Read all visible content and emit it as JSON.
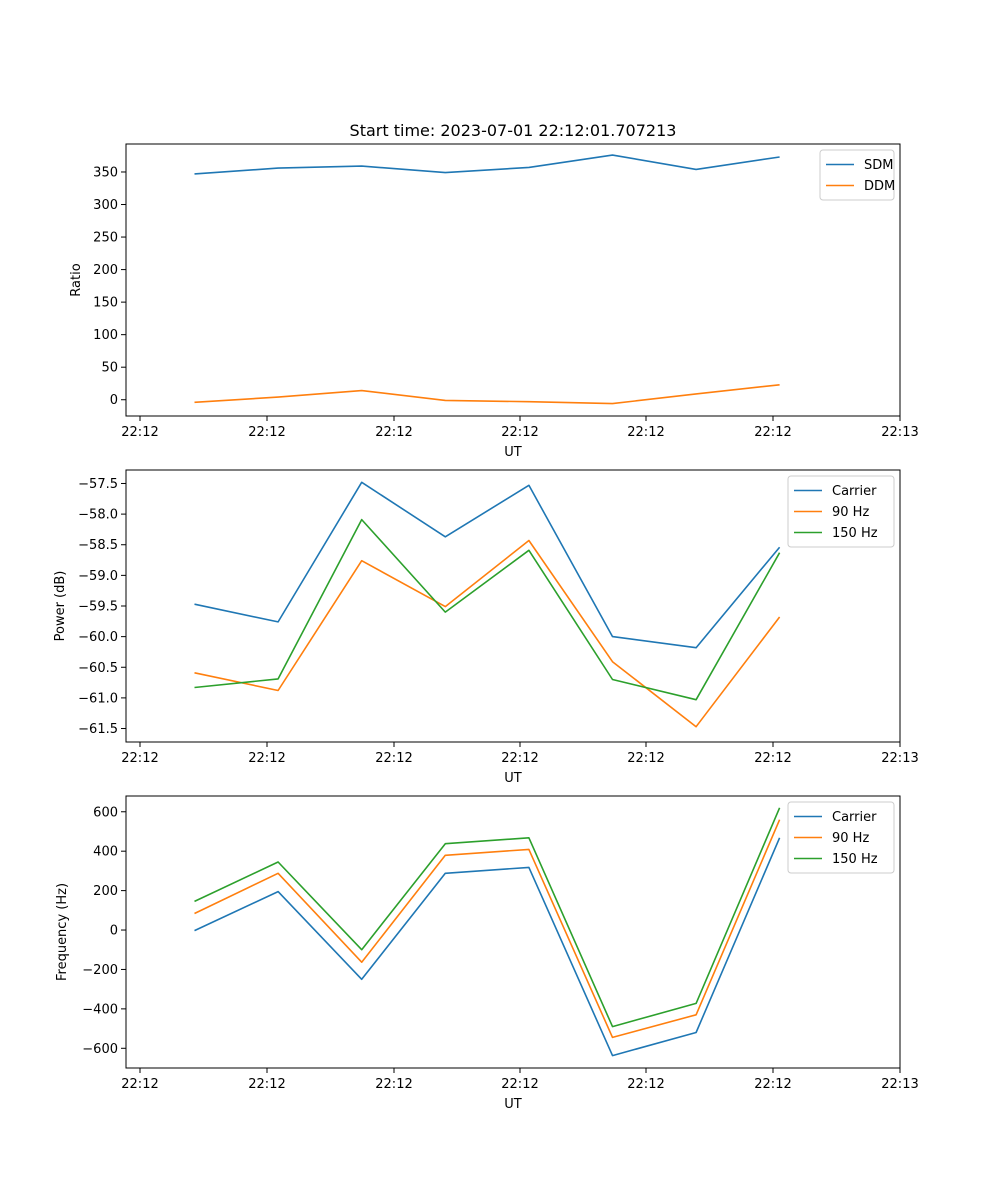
{
  "chart_data": [
    {
      "type": "line",
      "title": "Start time: 2023-07-01 22:12:01.707213",
      "xlabel": "UT",
      "ylabel": "Ratio",
      "x_tick_labels": [
        "22:12",
        "22:12",
        "22:12",
        "22:12",
        "22:12",
        "22:12",
        "22:13"
      ],
      "x": [
        1,
        2,
        3,
        4,
        5,
        6,
        7,
        8
      ],
      "xlim": [
        0.18,
        9.44
      ],
      "ylim": [
        -25,
        393
      ],
      "yticks": [
        0,
        50,
        100,
        150,
        200,
        250,
        300,
        350
      ],
      "y_tick_labels": [
        "0",
        "50",
        "100",
        "150",
        "200",
        "250",
        "300",
        "350"
      ],
      "legend_position": "top-right",
      "series": [
        {
          "name": "SDM",
          "color": "#1f77b4",
          "values": [
            347,
            356,
            359,
            349,
            357,
            376,
            354,
            373
          ]
        },
        {
          "name": "DDM",
          "color": "#ff7f0e",
          "values": [
            -4,
            4,
            14,
            -1,
            -3,
            -6,
            9,
            23
          ]
        }
      ]
    },
    {
      "type": "line",
      "title": "",
      "xlabel": "UT",
      "ylabel": "Power (dB)",
      "x_tick_labels": [
        "22:12",
        "22:12",
        "22:12",
        "22:12",
        "22:12",
        "22:12",
        "22:13"
      ],
      "x": [
        1,
        2,
        3,
        4,
        5,
        6,
        7,
        8
      ],
      "xlim": [
        0.18,
        9.44
      ],
      "ylim": [
        -61.72,
        -57.28
      ],
      "yticks": [
        -61.5,
        -61.0,
        -60.5,
        -60.0,
        -59.5,
        -59.0,
        -58.5,
        -58.0,
        -57.5
      ],
      "y_tick_labels": [
        "−61.5",
        "−61.0",
        "−60.5",
        "−60.0",
        "−59.5",
        "−59.0",
        "−58.5",
        "−58.0",
        "−57.5"
      ],
      "legend_position": "top-right",
      "series": [
        {
          "name": "Carrier",
          "color": "#1f77b4",
          "values": [
            -59.47,
            -59.76,
            -57.48,
            -58.37,
            -57.53,
            -60.0,
            -60.18,
            -58.54
          ]
        },
        {
          "name": "90 Hz",
          "color": "#ff7f0e",
          "values": [
            -60.59,
            -60.88,
            -58.76,
            -59.51,
            -58.43,
            -60.41,
            -61.47,
            -59.68
          ]
        },
        {
          "name": "150 Hz",
          "color": "#2ca02c",
          "values": [
            -60.83,
            -60.69,
            -58.09,
            -59.6,
            -58.59,
            -60.7,
            -61.03,
            -58.63
          ]
        }
      ]
    },
    {
      "type": "line",
      "title": "",
      "xlabel": "UT",
      "ylabel": "Frequency (Hz)",
      "x_tick_labels": [
        "22:12",
        "22:12",
        "22:12",
        "22:12",
        "22:12",
        "22:12",
        "22:13"
      ],
      "x": [
        1,
        2,
        3,
        4,
        5,
        6,
        7,
        8
      ],
      "xlim": [
        0.18,
        9.44
      ],
      "ylim": [
        -700,
        680
      ],
      "yticks": [
        -600,
        -400,
        -200,
        0,
        200,
        400,
        600
      ],
      "y_tick_labels": [
        "−600",
        "−400",
        "−200",
        "0",
        "200",
        "400",
        "600"
      ],
      "legend_position": "top-right",
      "series": [
        {
          "name": "Carrier",
          "color": "#1f77b4",
          "values": [
            -3,
            195,
            -250,
            288,
            318,
            -637,
            -520,
            468
          ]
        },
        {
          "name": "90 Hz",
          "color": "#ff7f0e",
          "values": [
            84,
            288,
            -163,
            379,
            409,
            -545,
            -430,
            560
          ]
        },
        {
          "name": "150 Hz",
          "color": "#2ca02c",
          "values": [
            145,
            345,
            -100,
            438,
            468,
            -490,
            -372,
            620
          ]
        }
      ]
    }
  ]
}
